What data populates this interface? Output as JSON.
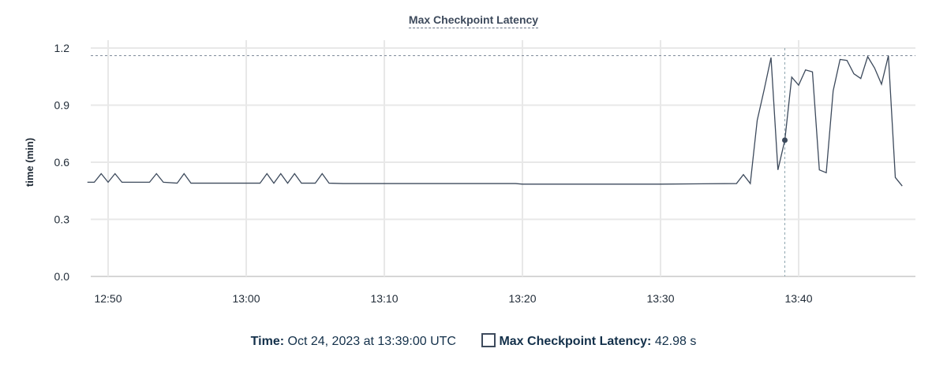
{
  "chart_data": {
    "type": "line",
    "title": "Max Checkpoint Latency",
    "xlabel": "",
    "ylabel": "time (min)",
    "ylim": [
      0,
      1.2
    ],
    "yticks": [
      "0.0",
      "0.3",
      "0.6",
      "0.9",
      "1.2"
    ],
    "xticks": [
      "12:50",
      "13:00",
      "13:10",
      "13:20",
      "13:30",
      "13:40"
    ],
    "grid": true,
    "max_line": 1.16,
    "color": "#3d4a5c",
    "series": [
      {
        "x": [
          "12:48:30",
          "12:49:00",
          "12:49:30",
          "12:50:00",
          "12:50:30",
          "12:51:00",
          "12:53:00",
          "12:53:30",
          "12:54:00",
          "12:55:00",
          "12:55:30",
          "12:56:00",
          "12:58:00",
          "13:00:00",
          "13:01:00",
          "13:01:30",
          "13:02:00",
          "13:02:30",
          "13:03:00",
          "13:03:30",
          "13:04:00",
          "13:05:00",
          "13:05:30",
          "13:06:00",
          "13:07:00",
          "13:19:30",
          "13:20:00",
          "13:25:00",
          "13:30:00",
          "13:35:30",
          "13:36:00",
          "13:36:30",
          "13:37:00",
          "13:37:30",
          "13:38:00",
          "13:38:30",
          "13:39:00",
          "13:39:30",
          "13:40:00",
          "13:40:30",
          "13:41:00",
          "13:41:30",
          "13:42:00",
          "13:42:30",
          "13:43:00",
          "13:43:30",
          "13:44:00",
          "13:44:30",
          "13:45:00",
          "13:45:30",
          "13:46:00",
          "13:46:30",
          "13:47:00",
          "13:47:30"
        ],
        "values": [
          0.495,
          0.495,
          0.54,
          0.495,
          0.54,
          0.495,
          0.495,
          0.54,
          0.495,
          0.49,
          0.54,
          0.49,
          0.49,
          0.49,
          0.49,
          0.54,
          0.49,
          0.54,
          0.49,
          0.54,
          0.49,
          0.49,
          0.54,
          0.49,
          0.488,
          0.488,
          0.485,
          0.485,
          0.485,
          0.488,
          0.535,
          0.488,
          0.82,
          0.98,
          1.15,
          0.56,
          0.716,
          1.047,
          1.005,
          1.085,
          1.075,
          0.56,
          0.545,
          0.975,
          1.14,
          1.135,
          1.065,
          1.04,
          1.155,
          1.095,
          1.01,
          1.16,
          0.52,
          0.475
        ]
      }
    ]
  },
  "tooltip": {
    "time_label": "Time:",
    "time_value": "Oct 24, 2023 at 13:39:00 UTC",
    "series_label": "Max Checkpoint Latency:",
    "series_value": "42.98 s",
    "hover_x": "13:39:00",
    "hover_y": 0.716
  }
}
